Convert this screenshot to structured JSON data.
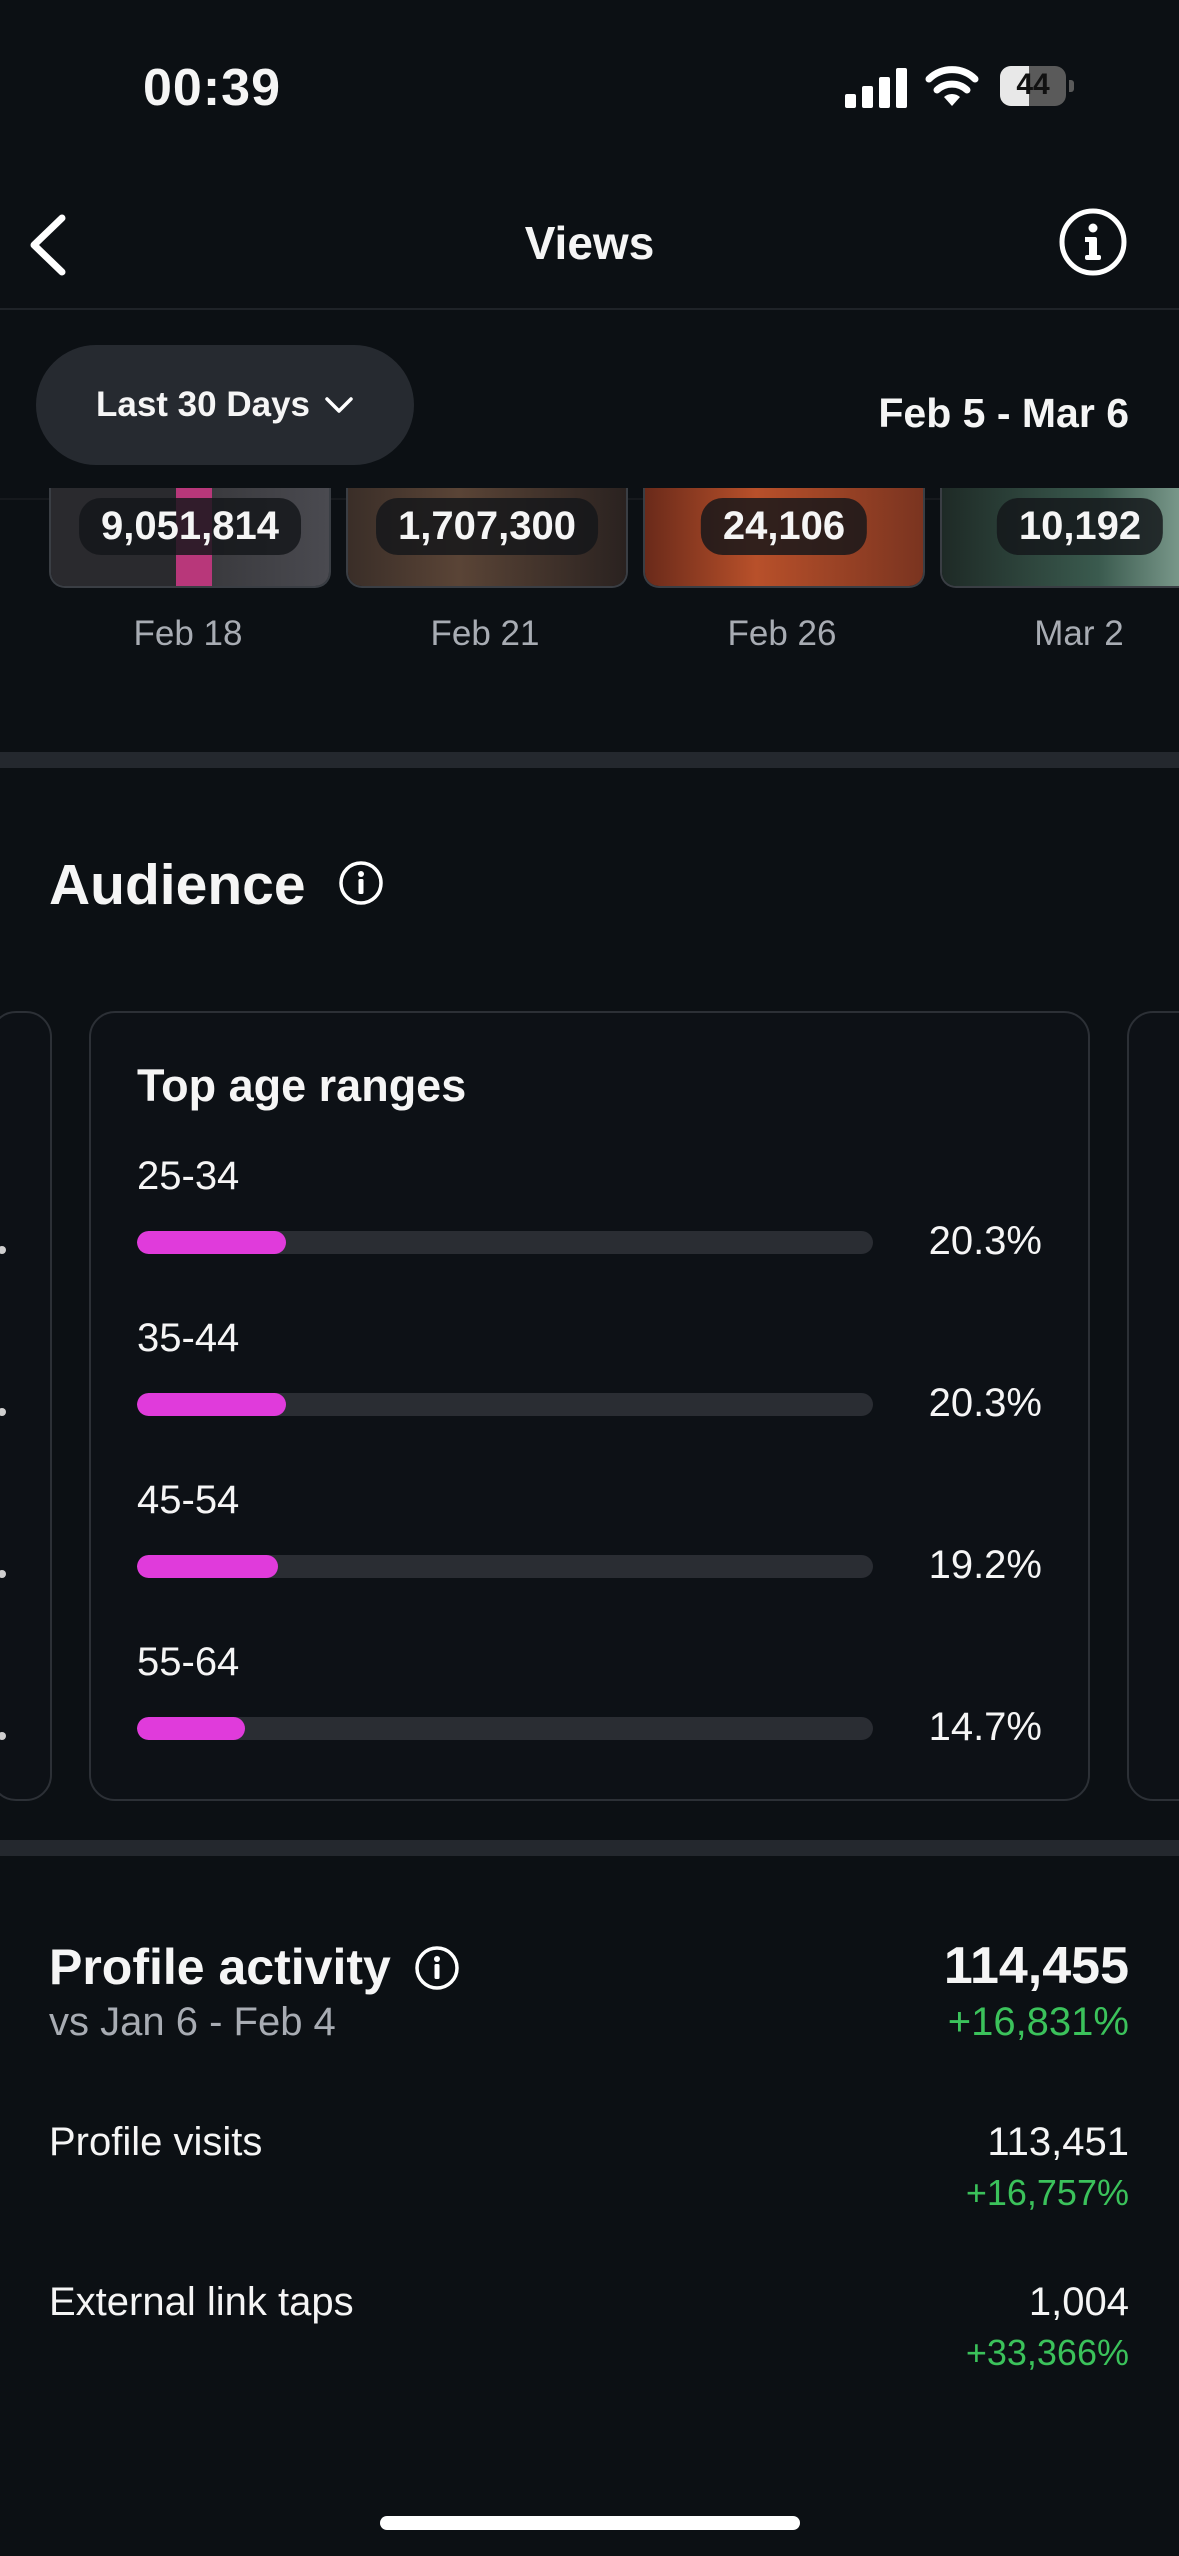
{
  "status_bar": {
    "time": "00:39",
    "battery": "44",
    "battery_level": 0.44
  },
  "nav": {
    "title": "Views",
    "back_icon": "chevron-left-icon",
    "info_icon": "info-icon"
  },
  "filter": {
    "period_label": "Last 30 Days",
    "date_range": "Feb 5 - Mar 6"
  },
  "top_content": [
    {
      "value": "9,051,814",
      "date": "Feb 18"
    },
    {
      "value": "1,707,300",
      "date": "Feb 21"
    },
    {
      "value": "24,106",
      "date": "Feb 26"
    },
    {
      "value": "10,192",
      "date": "Mar 2"
    }
  ],
  "audience": {
    "title": "Audience",
    "card_title": "Top age ranges",
    "age_ranges": [
      {
        "label": "25-34",
        "pct": "20.3%",
        "value": 20.3
      },
      {
        "label": "35-44",
        "pct": "20.3%",
        "value": 20.3
      },
      {
        "label": "45-54",
        "pct": "19.2%",
        "value": 19.2
      },
      {
        "label": "55-64",
        "pct": "14.7%",
        "value": 14.7
      }
    ],
    "bar_color": "#e03bdb"
  },
  "profile_activity": {
    "title": "Profile activity",
    "comparison": "vs Jan 6 - Feb 4",
    "total": "114,455",
    "total_change": "+16,831%",
    "rows": [
      {
        "label": "Profile visits",
        "value": "113,451",
        "change": "+16,757%"
      },
      {
        "label": "External link taps",
        "value": "1,004",
        "change": "+33,366%"
      }
    ],
    "positive_color": "#3bc25b"
  }
}
